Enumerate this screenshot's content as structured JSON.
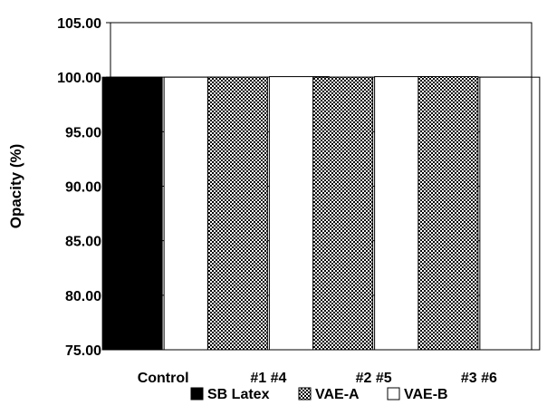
{
  "chart_data": {
    "type": "bar",
    "ylabel": "Opacity (%)",
    "ylim": [
      75.0,
      105.0
    ],
    "yticks": [
      "105.00",
      "100.00",
      "95.00",
      "90.00",
      "85.00",
      "80.00",
      "75.00"
    ],
    "grid": true,
    "legend_position": "bottom",
    "groups": [
      {
        "label": "Control",
        "bars": [
          {
            "series": "SB Latex",
            "value": 100.0
          },
          {
            "series": "VAE-B",
            "value": 100.0
          }
        ]
      },
      {
        "label": "#1 #4",
        "bars": [
          {
            "series": "VAE-A",
            "value": 100.0
          },
          {
            "series": "VAE-B",
            "value": 100.05
          }
        ]
      },
      {
        "label": "#2 #5",
        "bars": [
          {
            "series": "VAE-A",
            "value": 100.0
          },
          {
            "series": "VAE-B",
            "value": 100.05
          }
        ]
      },
      {
        "label": "#3 #6",
        "bars": [
          {
            "series": "VAE-A",
            "value": 100.05
          },
          {
            "series": "VAE-B",
            "value": 100.0
          }
        ]
      }
    ],
    "series": [
      {
        "name": "SB Latex",
        "fill": "solid-black"
      },
      {
        "name": "VAE-A",
        "fill": "checker-pattern"
      },
      {
        "name": "VAE-B",
        "fill": "white"
      }
    ]
  }
}
